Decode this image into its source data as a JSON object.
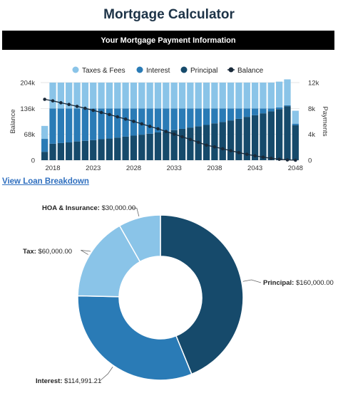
{
  "page": {
    "title": "Mortgage Calculator",
    "banner": "Your Mortgage Payment Information",
    "link_label": "View Loan Breakdown"
  },
  "colors": {
    "taxes_fees": "#8ac4e8",
    "interest": "#2a7bb6",
    "principal": "#164a6b",
    "balance": "#1a2a3a",
    "banner_bg": "#000000",
    "link": "#2f6fbf"
  },
  "chart_data": [
    {
      "type": "bar",
      "stacked": true,
      "legend": {
        "position": "top",
        "entries": [
          "Taxes & Fees",
          "Interest",
          "Principal",
          "Balance"
        ]
      },
      "x_ticks": [
        "2018",
        "2023",
        "2028",
        "2033",
        "2038",
        "2043",
        "2048"
      ],
      "x_start": 2017,
      "x_end": 2048,
      "yaxis_left": {
        "label": "Balance",
        "range": [
          0,
          204000
        ],
        "ticks": [
          "0",
          "68k",
          "136k",
          "204k"
        ],
        "tick_values": [
          0,
          68000,
          136000,
          204000
        ]
      },
      "yaxis_right": {
        "label": "Payments",
        "range": [
          0,
          12000
        ],
        "ticks": [
          "0",
          "4k",
          "8k",
          "12k"
        ],
        "tick_values": [
          0,
          4000,
          8000,
          12000
        ]
      },
      "series": [
        {
          "name": "Principal",
          "axis": "right",
          "values": [
            1300,
            2550,
            2650,
            2750,
            2900,
            3000,
            3100,
            3250,
            3350,
            3500,
            3650,
            3800,
            3950,
            4100,
            4300,
            4450,
            4650,
            4850,
            5050,
            5250,
            5450,
            5700,
            5900,
            6150,
            6400,
            6700,
            6950,
            7250,
            7550,
            7900,
            8350,
            5400
          ]
        },
        {
          "name": "Interest",
          "axis": "right",
          "values": [
            2000,
            5450,
            5350,
            5250,
            5100,
            5000,
            4900,
            4750,
            4650,
            4500,
            4350,
            4200,
            4050,
            3900,
            3700,
            3550,
            3350,
            3150,
            2950,
            2750,
            2550,
            2300,
            2100,
            1850,
            1600,
            1300,
            1050,
            750,
            450,
            250,
            150,
            250
          ]
        },
        {
          "name": "Taxes & Fees",
          "axis": "right",
          "values": [
            2000,
            4000,
            4000,
            4000,
            4000,
            4000,
            4000,
            4000,
            4000,
            4000,
            4000,
            4000,
            4000,
            4000,
            4000,
            4000,
            4000,
            4000,
            4000,
            4000,
            4000,
            4000,
            4000,
            4000,
            4000,
            4000,
            4000,
            4000,
            4000,
            4000,
            4000,
            2000
          ]
        },
        {
          "name": "Balance",
          "type": "line",
          "axis": "left",
          "values": [
            160000,
            156000,
            151000,
            146500,
            141500,
            136500,
            131000,
            125500,
            120000,
            114000,
            108000,
            102000,
            95500,
            89000,
            82500,
            75500,
            68500,
            61500,
            54500,
            47000,
            39500,
            35000,
            30000,
            25000,
            20000,
            15500,
            11500,
            8000,
            5000,
            2500,
            800,
            0
          ]
        }
      ]
    },
    {
      "type": "pie",
      "donut": true,
      "slices": [
        {
          "label": "Principal",
          "value": 160000,
          "display": "Principal: $160,000.00",
          "color": "#164a6b"
        },
        {
          "label": "Interest",
          "value": 114991.21,
          "display": "Interest: $114,991.21",
          "color": "#2a7bb6"
        },
        {
          "label": "Tax",
          "value": 60000,
          "display": "Tax: $60,000.00",
          "color": "#8ac4e8"
        },
        {
          "label": "HOA & Insurance",
          "value": 30000,
          "display": "HOA & Insurance: $30,000.00",
          "color": "#8ac4e8"
        }
      ]
    }
  ]
}
